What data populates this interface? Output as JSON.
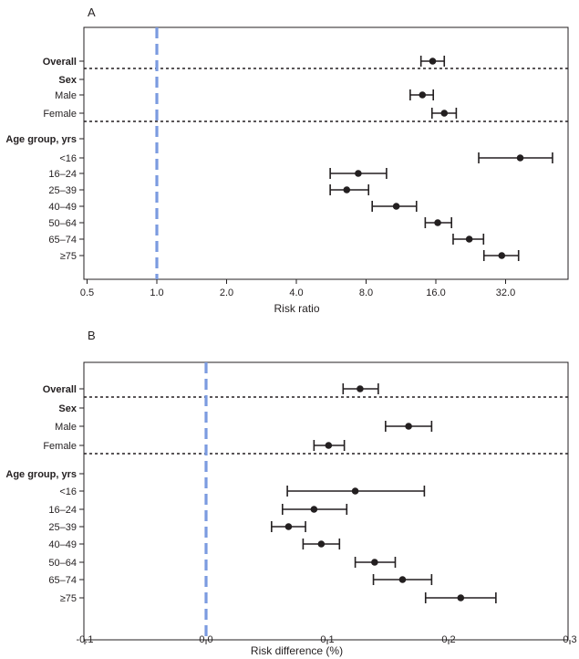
{
  "chart_data": [
    {
      "panel": "A",
      "type": "forest-plot",
      "xlabel": "Risk ratio",
      "xscale": "log2",
      "xlim": [
        0.5,
        64
      ],
      "ticks": [
        {
          "value": 0.5,
          "label": "0.5"
        },
        {
          "value": 1,
          "label": "1.0"
        },
        {
          "value": 2,
          "label": "2.0"
        },
        {
          "value": 4,
          "label": "4.0"
        },
        {
          "value": 8,
          "label": "8.0"
        },
        {
          "value": 16,
          "label": "16.0"
        },
        {
          "value": 32,
          "label": "32.0"
        }
      ],
      "reference_line": 1,
      "rows": [
        {
          "label": "Overall",
          "bold": true,
          "estimate": 15.5,
          "low": 13.8,
          "high": 17.4
        },
        {
          "label": "Sex",
          "bold": true,
          "header": true
        },
        {
          "label": "Male",
          "estimate": 14.0,
          "low": 12.4,
          "high": 15.6
        },
        {
          "label": "Female",
          "estimate": 17.4,
          "low": 15.4,
          "high": 19.6
        },
        {
          "label": "Age group, yrs",
          "bold": true,
          "header": true
        },
        {
          "label": "<16",
          "estimate": 37.0,
          "low": 24.5,
          "high": 51.0
        },
        {
          "label": "16–24",
          "estimate": 7.4,
          "low": 5.6,
          "high": 9.8
        },
        {
          "label": "25–39",
          "estimate": 6.6,
          "low": 5.6,
          "high": 8.2
        },
        {
          "label": "40–49",
          "estimate": 10.8,
          "low": 8.5,
          "high": 13.2
        },
        {
          "label": "50–64",
          "estimate": 16.3,
          "low": 14.4,
          "high": 18.7
        },
        {
          "label": "65–74",
          "estimate": 22.3,
          "low": 19.0,
          "high": 25.7
        },
        {
          "label": "≥75",
          "estimate": 30.8,
          "low": 25.8,
          "high": 36.4
        }
      ]
    },
    {
      "panel": "B",
      "type": "forest-plot",
      "xlabel": "Risk difference (%)",
      "xscale": "linear",
      "xlim": [
        -0.1,
        0.3
      ],
      "ticks": [
        {
          "value": -0.1,
          "label": "-0.1"
        },
        {
          "value": 0.0,
          "label": "0.0"
        },
        {
          "value": 0.1,
          "label": "0.1"
        },
        {
          "value": 0.2,
          "label": "0.2"
        },
        {
          "value": 0.3,
          "label": "0.3"
        }
      ],
      "reference_line": 0,
      "rows": [
        {
          "label": "Overall",
          "bold": true,
          "estimate": 0.127,
          "low": 0.113,
          "high": 0.142
        },
        {
          "label": "Sex",
          "bold": true,
          "header": true
        },
        {
          "label": "Male",
          "estimate": 0.167,
          "low": 0.148,
          "high": 0.186
        },
        {
          "label": "Female",
          "estimate": 0.101,
          "low": 0.089,
          "high": 0.114
        },
        {
          "label": "Age group, yrs",
          "bold": true,
          "header": true
        },
        {
          "label": "<16",
          "estimate": 0.123,
          "low": 0.067,
          "high": 0.18
        },
        {
          "label": "16–24",
          "estimate": 0.089,
          "low": 0.063,
          "high": 0.116
        },
        {
          "label": "25–39",
          "estimate": 0.068,
          "low": 0.054,
          "high": 0.082
        },
        {
          "label": "40–49",
          "estimate": 0.095,
          "low": 0.08,
          "high": 0.11
        },
        {
          "label": "50–64",
          "estimate": 0.139,
          "low": 0.123,
          "high": 0.156
        },
        {
          "label": "65–74",
          "estimate": 0.162,
          "low": 0.138,
          "high": 0.186
        },
        {
          "label": "≥75",
          "estimate": 0.21,
          "low": 0.181,
          "high": 0.239
        }
      ]
    }
  ],
  "colors": {
    "reference_line": "#7b9be0",
    "ink": "#231f20",
    "background": "#ffffff"
  }
}
